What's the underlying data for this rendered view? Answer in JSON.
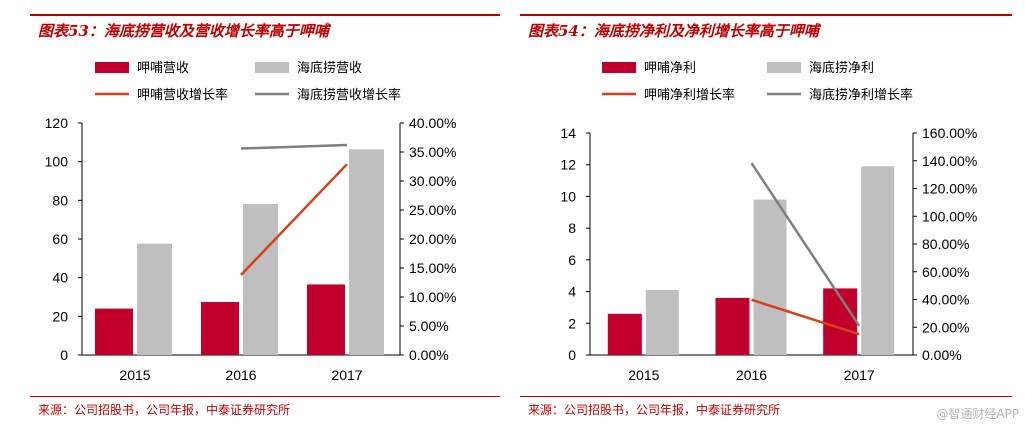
{
  "charts": {
    "left": {
      "title": "图表53：海底捞营收及营收增长率高于呷哺",
      "source": "来源：公司招股书，公司年报，中泰证券研究所"
    },
    "right": {
      "title": "图表54：海底捞净利及净利增长率高于呷哺",
      "source": "来源：公司招股书，公司年报，中泰证券研究所"
    }
  },
  "watermark": "@智通财经APP",
  "colors": {
    "accent": "#c00000",
    "bar_a": "#c0002a",
    "bar_b": "#bfbfbf",
    "line_a": "#d8401a",
    "line_b": "#7f7f7f"
  },
  "chart_data": [
    {
      "type": "bar",
      "title": "图表53：海底捞营收及营收增长率高于呷哺",
      "categories": [
        "2015",
        "2016",
        "2017"
      ],
      "ylim": [
        0,
        120
      ],
      "yticks": [
        "0",
        "20",
        "40",
        "60",
        "80",
        "100",
        "120"
      ],
      "y2lim": [
        0,
        40
      ],
      "y2ticks": [
        "0.00%",
        "5.00%",
        "10.00%",
        "15.00%",
        "20.00%",
        "25.00%",
        "30.00%",
        "35.00%",
        "40.00%"
      ],
      "legend_position": "top",
      "series": [
        {
          "name": "呷哺营收",
          "kind": "bar",
          "axis": "left",
          "values": [
            24,
            27.4,
            36.5
          ]
        },
        {
          "name": "海底捞营收",
          "kind": "bar",
          "axis": "left",
          "values": [
            57.6,
            78.1,
            106.4
          ]
        },
        {
          "name": "呷哺营收增长率",
          "kind": "line",
          "axis": "right",
          "values": [
            null,
            13.8,
            32.9
          ]
        },
        {
          "name": "海底捞营收增长率",
          "kind": "line",
          "axis": "right",
          "values": [
            null,
            35.6,
            36.2
          ]
        }
      ]
    },
    {
      "type": "bar",
      "title": "图表54：海底捞净利及净利增长率高于呷哺",
      "categories": [
        "2015",
        "2016",
        "2017"
      ],
      "ylim": [
        0,
        14
      ],
      "yticks": [
        "0",
        "2",
        "4",
        "6",
        "8",
        "10",
        "12",
        "14"
      ],
      "y2lim": [
        0,
        160
      ],
      "y2ticks": [
        "0.00%",
        "20.00%",
        "40.00%",
        "60.00%",
        "80.00%",
        "100.00%",
        "120.00%",
        "140.00%",
        "160.00%"
      ],
      "legend_position": "top",
      "series": [
        {
          "name": "呷哺净利",
          "kind": "bar",
          "axis": "left",
          "values": [
            2.6,
            3.6,
            4.2
          ]
        },
        {
          "name": "海底捞净利",
          "kind": "bar",
          "axis": "left",
          "values": [
            4.1,
            9.8,
            11.9
          ]
        },
        {
          "name": "呷哺净利增长率",
          "kind": "line",
          "axis": "right",
          "values": [
            null,
            39.8,
            15
          ]
        },
        {
          "name": "海底捞净利增长率",
          "kind": "line",
          "axis": "right",
          "values": [
            null,
            138.3,
            21
          ]
        }
      ]
    }
  ]
}
